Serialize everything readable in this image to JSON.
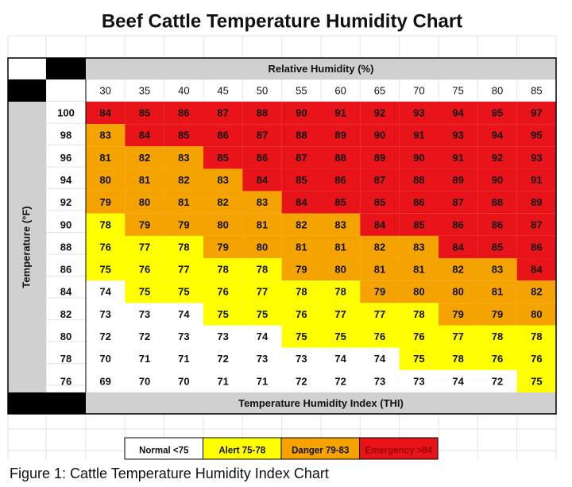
{
  "title": "Beef Cattle Temperature Humidity Chart",
  "table": {
    "column_header": "Relative Humidity (%)",
    "row_header": "Temperature (°F)",
    "columns": [
      30,
      35,
      40,
      45,
      50,
      55,
      60,
      65,
      70,
      75,
      80,
      85
    ],
    "rows": [
      {
        "label": 100,
        "values": [
          84,
          85,
          86,
          87,
          88,
          90,
          91,
          92,
          93,
          94,
          95,
          97
        ]
      },
      {
        "label": 98,
        "values": [
          83,
          84,
          85,
          86,
          87,
          88,
          89,
          90,
          91,
          93,
          94,
          95
        ]
      },
      {
        "label": 96,
        "values": [
          81,
          82,
          83,
          85,
          86,
          87,
          88,
          89,
          90,
          91,
          92,
          93
        ]
      },
      {
        "label": 94,
        "values": [
          80,
          81,
          82,
          83,
          84,
          85,
          86,
          87,
          88,
          89,
          90,
          91
        ]
      },
      {
        "label": 92,
        "values": [
          79,
          80,
          81,
          82,
          83,
          84,
          85,
          85,
          86,
          87,
          88,
          89
        ]
      },
      {
        "label": 90,
        "values": [
          78,
          79,
          79,
          80,
          81,
          82,
          83,
          84,
          85,
          86,
          86,
          87
        ]
      },
      {
        "label": 88,
        "values": [
          76,
          77,
          78,
          79,
          80,
          81,
          81,
          82,
          83,
          84,
          85,
          86
        ]
      },
      {
        "label": 86,
        "values": [
          75,
          76,
          77,
          78,
          78,
          79,
          80,
          81,
          81,
          82,
          83,
          84
        ]
      },
      {
        "label": 84,
        "values": [
          74,
          75,
          75,
          76,
          77,
          78,
          78,
          79,
          80,
          80,
          81,
          82
        ]
      },
      {
        "label": 82,
        "values": [
          73,
          73,
          74,
          75,
          75,
          76,
          77,
          77,
          78,
          79,
          79,
          80
        ]
      },
      {
        "label": 80,
        "values": [
          72,
          72,
          73,
          73,
          74,
          75,
          75,
          76,
          76,
          77,
          78,
          78
        ]
      },
      {
        "label": 78,
        "values": [
          70,
          71,
          71,
          72,
          73,
          73,
          74,
          74,
          75,
          78,
          76,
          76
        ]
      },
      {
        "label": 76,
        "values": [
          69,
          70,
          70,
          71,
          71,
          72,
          72,
          73,
          73,
          74,
          72,
          75
        ]
      }
    ],
    "footer": "Temperature Humidity Index (THI)"
  },
  "legend": [
    {
      "label": "Normal <75",
      "color": "#ffffff"
    },
    {
      "label": "Alert 75-78",
      "color": "#ffff00"
    },
    {
      "label": "Danger 79-83",
      "color": "#f5a300"
    },
    {
      "label": "Emergency >84",
      "color": "#e8141a"
    }
  ],
  "caption": "Figure 1: Cattle Temperature Humidity Index Chart"
}
